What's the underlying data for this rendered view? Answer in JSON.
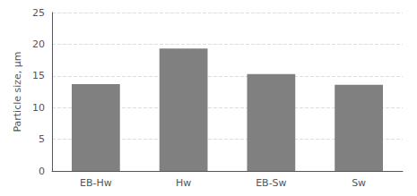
{
  "chart_data": {
    "type": "bar",
    "categories": [
      "EB-Hw",
      "Hw",
      "EB-Sw",
      "Sw"
    ],
    "values": [
      13.7,
      19.3,
      15.3,
      13.6
    ],
    "color": "#808080",
    "ylabel": "Particle size, μm",
    "ylim": [
      0,
      25
    ],
    "yticks": [
      0,
      5,
      10,
      15,
      20,
      25
    ],
    "grid": true
  }
}
